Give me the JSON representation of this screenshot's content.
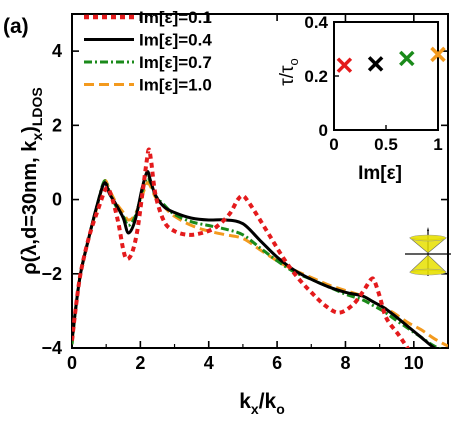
{
  "panel_label": "(a)",
  "colors": {
    "im01": "#e41a1c",
    "im04": "#000000",
    "im07": "#1a8a1a",
    "im10": "#f39a1e",
    "cone": "#e8e000"
  },
  "chart_data": [
    {
      "type": "line",
      "ylabel_main": "ρ(λ,d=30nm, k",
      "ylabel_sub1": "x",
      "ylabel_tail": ")",
      "ylabel_sub2": "LDOS",
      "xlabel_main": "k",
      "xlabel_sub1": "x",
      "xlabel_mid": "/k",
      "xlabel_sub2": "o",
      "xlim": [
        0,
        11
      ],
      "ylim": [
        -4,
        5
      ],
      "xticks": [
        0,
        2,
        4,
        6,
        8,
        10
      ],
      "yticks": [
        -4,
        -2,
        0,
        2,
        4
      ],
      "legend_position": "top-left",
      "series": [
        {
          "name": "Im[ε]=0.1",
          "color": "#e41a1c",
          "dash": "5,4",
          "x": [
            0,
            0.1,
            0.25,
            0.5,
            0.75,
            1.0,
            1.15,
            1.35,
            1.5,
            1.6,
            1.75,
            1.9,
            2.05,
            2.18,
            2.25,
            2.32,
            2.45,
            2.7,
            3.0,
            3.4,
            3.8,
            4.2,
            4.6,
            4.85,
            5.0,
            5.15,
            5.4,
            5.8,
            6.2,
            6.6,
            7.0,
            7.4,
            7.8,
            8.2,
            8.5,
            8.75,
            8.85,
            9.0,
            9.2,
            9.6,
            10.0,
            10.2,
            10.6
          ],
          "y": [
            -3.8,
            -3.0,
            -2.0,
            -1.0,
            -0.3,
            0.3,
            0.1,
            -0.6,
            -1.35,
            -1.6,
            -1.45,
            -0.9,
            0.1,
            1.0,
            1.35,
            1.0,
            0.1,
            -0.6,
            -0.85,
            -0.95,
            -0.9,
            -0.75,
            -0.4,
            0.0,
            0.1,
            -0.05,
            -0.4,
            -1.0,
            -1.6,
            -2.1,
            -2.5,
            -2.85,
            -3.05,
            -2.85,
            -2.5,
            -2.15,
            -2.2,
            -2.6,
            -3.2,
            -3.7,
            -4.3,
            -4.9,
            -5.5
          ]
        },
        {
          "name": "Im[ε]=0.4",
          "color": "#000000",
          "dash": "",
          "x": [
            0,
            0.1,
            0.25,
            0.5,
            0.75,
            0.95,
            1.1,
            1.3,
            1.5,
            1.65,
            1.85,
            2.05,
            2.2,
            2.3,
            2.45,
            2.7,
            3.0,
            3.5,
            4.0,
            4.5,
            5.0,
            5.5,
            6.0,
            6.5,
            7.0,
            7.5,
            8.0,
            8.5,
            8.8,
            9.1,
            9.4,
            9.8,
            10.2,
            10.6,
            11.0
          ],
          "y": [
            -3.8,
            -3.0,
            -2.0,
            -1.0,
            -0.1,
            0.45,
            0.15,
            -0.15,
            -0.5,
            -0.9,
            -0.55,
            0.3,
            0.75,
            0.5,
            0.1,
            -0.2,
            -0.35,
            -0.5,
            -0.55,
            -0.55,
            -0.65,
            -1.1,
            -1.55,
            -1.9,
            -2.15,
            -2.35,
            -2.5,
            -2.6,
            -2.75,
            -2.9,
            -3.1,
            -3.4,
            -3.7,
            -4.0,
            -4.2
          ]
        },
        {
          "name": "Im[ε]=0.7",
          "color": "#1a8a1a",
          "dash": "8,3,2,3",
          "x": [
            0,
            0.1,
            0.25,
            0.5,
            0.75,
            0.95,
            1.1,
            1.3,
            1.5,
            1.65,
            1.85,
            2.05,
            2.2,
            2.3,
            2.45,
            2.7,
            3.0,
            3.5,
            4.0,
            4.5,
            5.0,
            5.5,
            6.0,
            6.5,
            7.0,
            7.5,
            8.0,
            8.5,
            8.8,
            9.1,
            9.4,
            9.8,
            10.2,
            10.6,
            11.0
          ],
          "y": [
            -3.9,
            -3.0,
            -2.0,
            -1.0,
            -0.1,
            0.5,
            0.2,
            -0.2,
            -0.45,
            -0.7,
            -0.45,
            0.2,
            0.6,
            0.45,
            0.1,
            -0.15,
            -0.4,
            -0.6,
            -0.7,
            -0.8,
            -0.95,
            -1.3,
            -1.65,
            -1.95,
            -2.15,
            -2.35,
            -2.55,
            -2.7,
            -2.85,
            -3.0,
            -3.2,
            -3.45,
            -3.7,
            -3.95,
            -4.1
          ]
        },
        {
          "name": "Im[ε]=1.0",
          "color": "#f39a1e",
          "dash": "10,5",
          "x": [
            0,
            0.1,
            0.25,
            0.5,
            0.75,
            0.95,
            1.1,
            1.3,
            1.5,
            1.65,
            1.85,
            2.05,
            2.2,
            2.3,
            2.45,
            2.7,
            3.0,
            3.5,
            4.0,
            4.5,
            5.0,
            5.5,
            6.0,
            6.5,
            7.0,
            7.5,
            8.0,
            8.5,
            8.8,
            9.1,
            9.4,
            9.8,
            10.2,
            10.6,
            11.0
          ],
          "y": [
            -3.9,
            -3.0,
            -2.0,
            -1.0,
            -0.15,
            0.5,
            0.25,
            -0.1,
            -0.35,
            -0.55,
            -0.4,
            0.1,
            0.45,
            0.35,
            0.05,
            -0.2,
            -0.45,
            -0.7,
            -0.85,
            -0.95,
            -1.05,
            -1.35,
            -1.65,
            -1.9,
            -2.1,
            -2.3,
            -2.45,
            -2.6,
            -2.75,
            -2.9,
            -3.05,
            -3.3,
            -3.5,
            -3.75,
            -3.95
          ]
        }
      ]
    },
    {
      "type": "scatter",
      "ylabel_main": "τ/τ",
      "ylabel_sub": "o",
      "xlabel": "Im[ε]",
      "xlim": [
        0,
        1
      ],
      "ylim": [
        0,
        0.4
      ],
      "xticks": [
        "0",
        "0.5",
        "1"
      ],
      "yticks": [
        "0",
        "0.2",
        "0.4"
      ],
      "points": [
        {
          "x": 0.1,
          "y": 0.24,
          "color": "#e41a1c"
        },
        {
          "x": 0.4,
          "y": 0.245,
          "color": "#000000"
        },
        {
          "x": 0.7,
          "y": 0.265,
          "color": "#1a8a1a"
        },
        {
          "x": 1.0,
          "y": 0.28,
          "color": "#f39a1e"
        }
      ]
    }
  ]
}
